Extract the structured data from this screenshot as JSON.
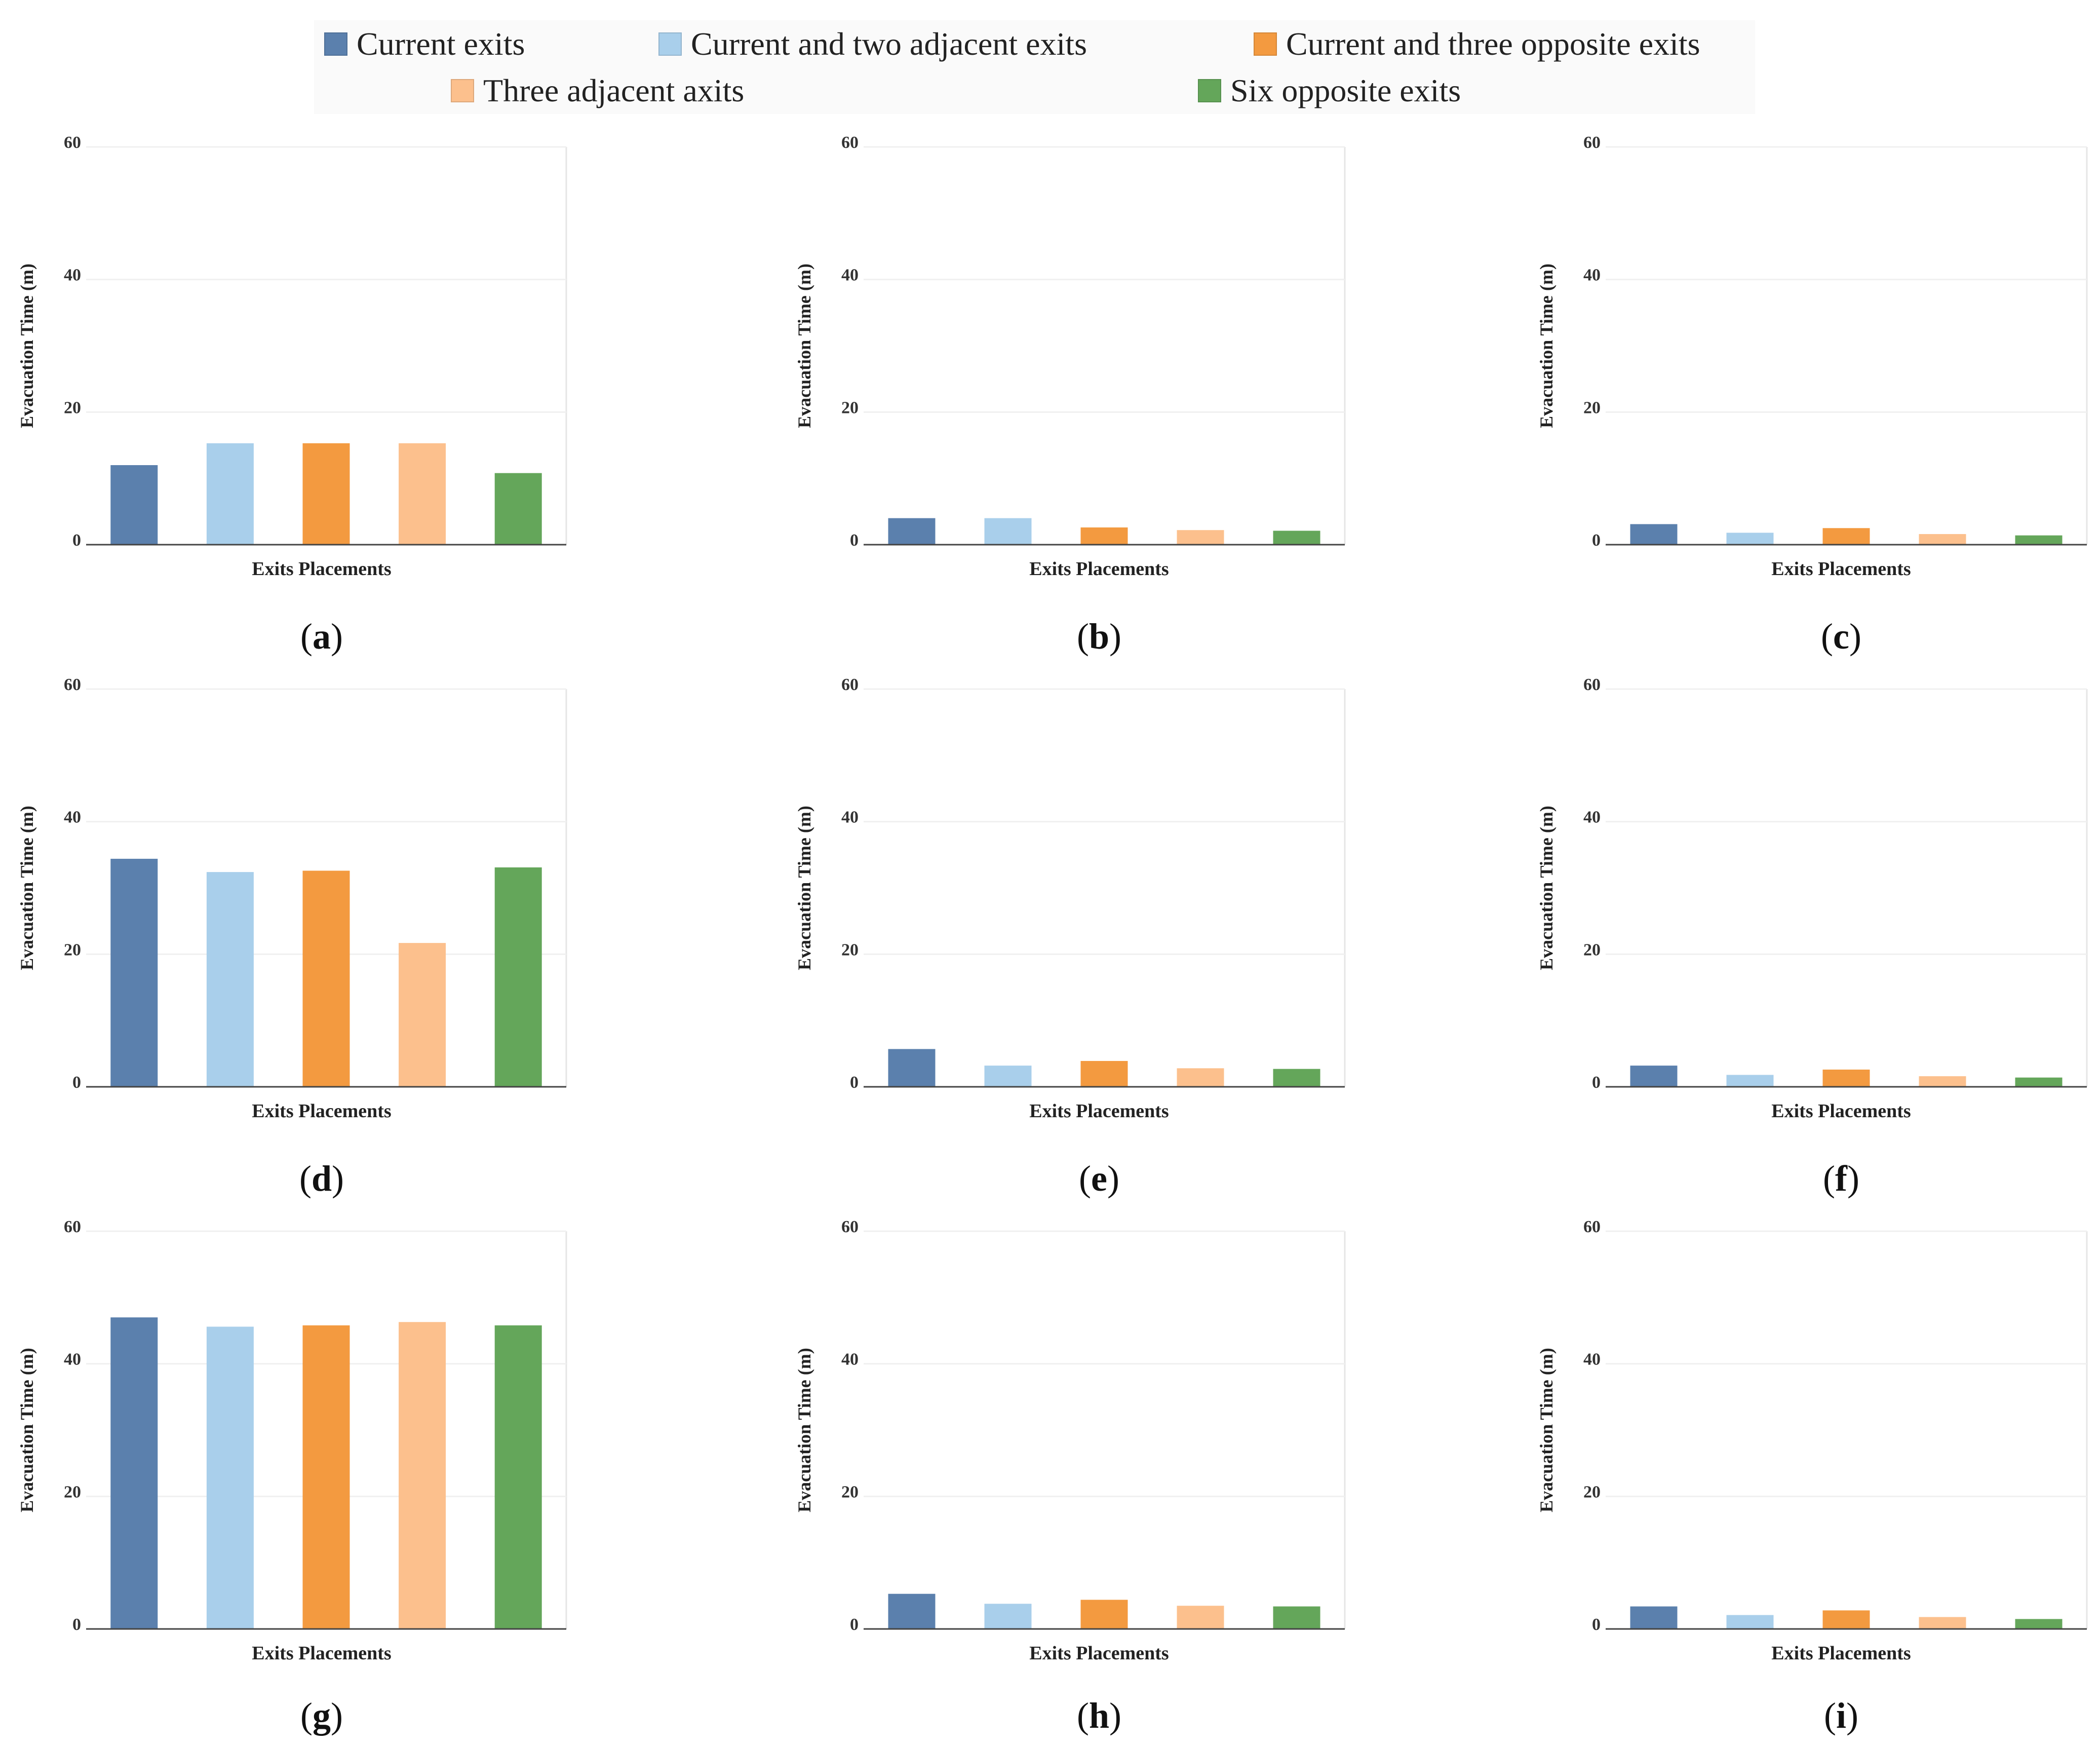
{
  "legend": {
    "items": [
      {
        "label": "Current exits",
        "color": "#5b80ad"
      },
      {
        "label": "Current and two adjacent exits",
        "color": "#a9cfeb"
      },
      {
        "label": "Current and three opposite exits",
        "color": "#f39a40"
      },
      {
        "label": "Three adjacent axits",
        "color": "#fcc08d"
      },
      {
        "label": "Six opposite exits",
        "color": "#64a65a"
      }
    ]
  },
  "chart_data": [
    {
      "type": "bar",
      "panel": "a",
      "categories": [
        "Current exits",
        "Current and two adjacent exits",
        "Current and three opposite exits",
        "Three adjacent axits",
        "Six opposite exits"
      ],
      "values": [
        12,
        15.3,
        15.3,
        15.3,
        10.8
      ],
      "xlabel": "Exits Placements",
      "ylabel": "Evacuation Time (m)",
      "ylim": [
        0,
        60
      ],
      "yticks": [
        0,
        20,
        40,
        60
      ]
    },
    {
      "type": "bar",
      "panel": "b",
      "categories": [
        "Current exits",
        "Current and two adjacent exits",
        "Current and three opposite exits",
        "Three adjacent axits",
        "Six opposite exits"
      ],
      "values": [
        4,
        4,
        2.6,
        2.2,
        2.1
      ],
      "xlabel": "Exits Placements",
      "ylabel": "Evacuation Time (m)",
      "ylim": [
        0,
        60
      ],
      "yticks": [
        0,
        20,
        40,
        60
      ]
    },
    {
      "type": "bar",
      "panel": "c",
      "categories": [
        "Current exits",
        "Current and two adjacent exits",
        "Current and three opposite exits",
        "Three adjacent axits",
        "Six opposite exits"
      ],
      "values": [
        3.1,
        1.8,
        2.5,
        1.6,
        1.4
      ],
      "xlabel": "Exits Placements",
      "ylabel": "Evacuation Time (m)",
      "ylim": [
        0,
        60
      ],
      "yticks": [
        0,
        20,
        40,
        60
      ]
    },
    {
      "type": "bar",
      "panel": "d",
      "categories": [
        "Current exits",
        "Current and two adjacent exits",
        "Current and three opposite exits",
        "Three adjacent axits",
        "Six opposite exits"
      ],
      "values": [
        34.4,
        32.4,
        32.6,
        21.7,
        33.1
      ],
      "xlabel": "Exits Placements",
      "ylabel": "Evacuation Time (m)",
      "ylim": [
        0,
        60
      ],
      "yticks": [
        0,
        20,
        40,
        60
      ]
    },
    {
      "type": "bar",
      "panel": "e",
      "categories": [
        "Current exits",
        "Current and two adjacent exits",
        "Current and three opposite exits",
        "Three adjacent axits",
        "Six opposite exits"
      ],
      "values": [
        5.7,
        3.2,
        3.9,
        2.8,
        2.7
      ],
      "xlabel": "Exits Placements",
      "ylabel": "Evacuation Time (m)",
      "ylim": [
        0,
        60
      ],
      "yticks": [
        0,
        20,
        40,
        60
      ]
    },
    {
      "type": "bar",
      "panel": "f",
      "categories": [
        "Current exits",
        "Current and two adjacent exits",
        "Current and three opposite exits",
        "Three adjacent axits",
        "Six opposite exits"
      ],
      "values": [
        3.2,
        1.8,
        2.6,
        1.6,
        1.4
      ],
      "xlabel": "Exits Placements",
      "ylabel": "Evacuation Time (m)",
      "ylim": [
        0,
        60
      ],
      "yticks": [
        0,
        20,
        40,
        60
      ]
    },
    {
      "type": "bar",
      "panel": "g",
      "categories": [
        "Current exits",
        "Current and two adjacent exits",
        "Current and three opposite exits",
        "Three adjacent axits",
        "Six opposite exits"
      ],
      "values": [
        47,
        45.6,
        45.8,
        46.3,
        45.8
      ],
      "xlabel": "Exits Placements",
      "ylabel": "Evacuation Time (m)",
      "ylim": [
        0,
        60
      ],
      "yticks": [
        0,
        20,
        40,
        60
      ]
    },
    {
      "type": "bar",
      "panel": "h",
      "categories": [
        "Current exits",
        "Current and two adjacent exits",
        "Current and three opposite exits",
        "Three adjacent axits",
        "Six opposite exits"
      ],
      "values": [
        5.3,
        3.8,
        4.4,
        3.5,
        3.4
      ],
      "xlabel": "Exits Placements",
      "ylabel": "Evacuation Time (m)",
      "ylim": [
        0,
        60
      ],
      "yticks": [
        0,
        20,
        40,
        60
      ]
    },
    {
      "type": "bar",
      "panel": "i",
      "categories": [
        "Current exits",
        "Current and two adjacent exits",
        "Current and three opposite exits",
        "Three adjacent axits",
        "Six opposite exits"
      ],
      "values": [
        3.4,
        2.1,
        2.8,
        1.8,
        1.5
      ],
      "xlabel": "Exits Placements",
      "ylabel": "Evacuation Time (m)",
      "ylim": [
        0,
        60
      ],
      "yticks": [
        0,
        20,
        40,
        60
      ]
    }
  ]
}
